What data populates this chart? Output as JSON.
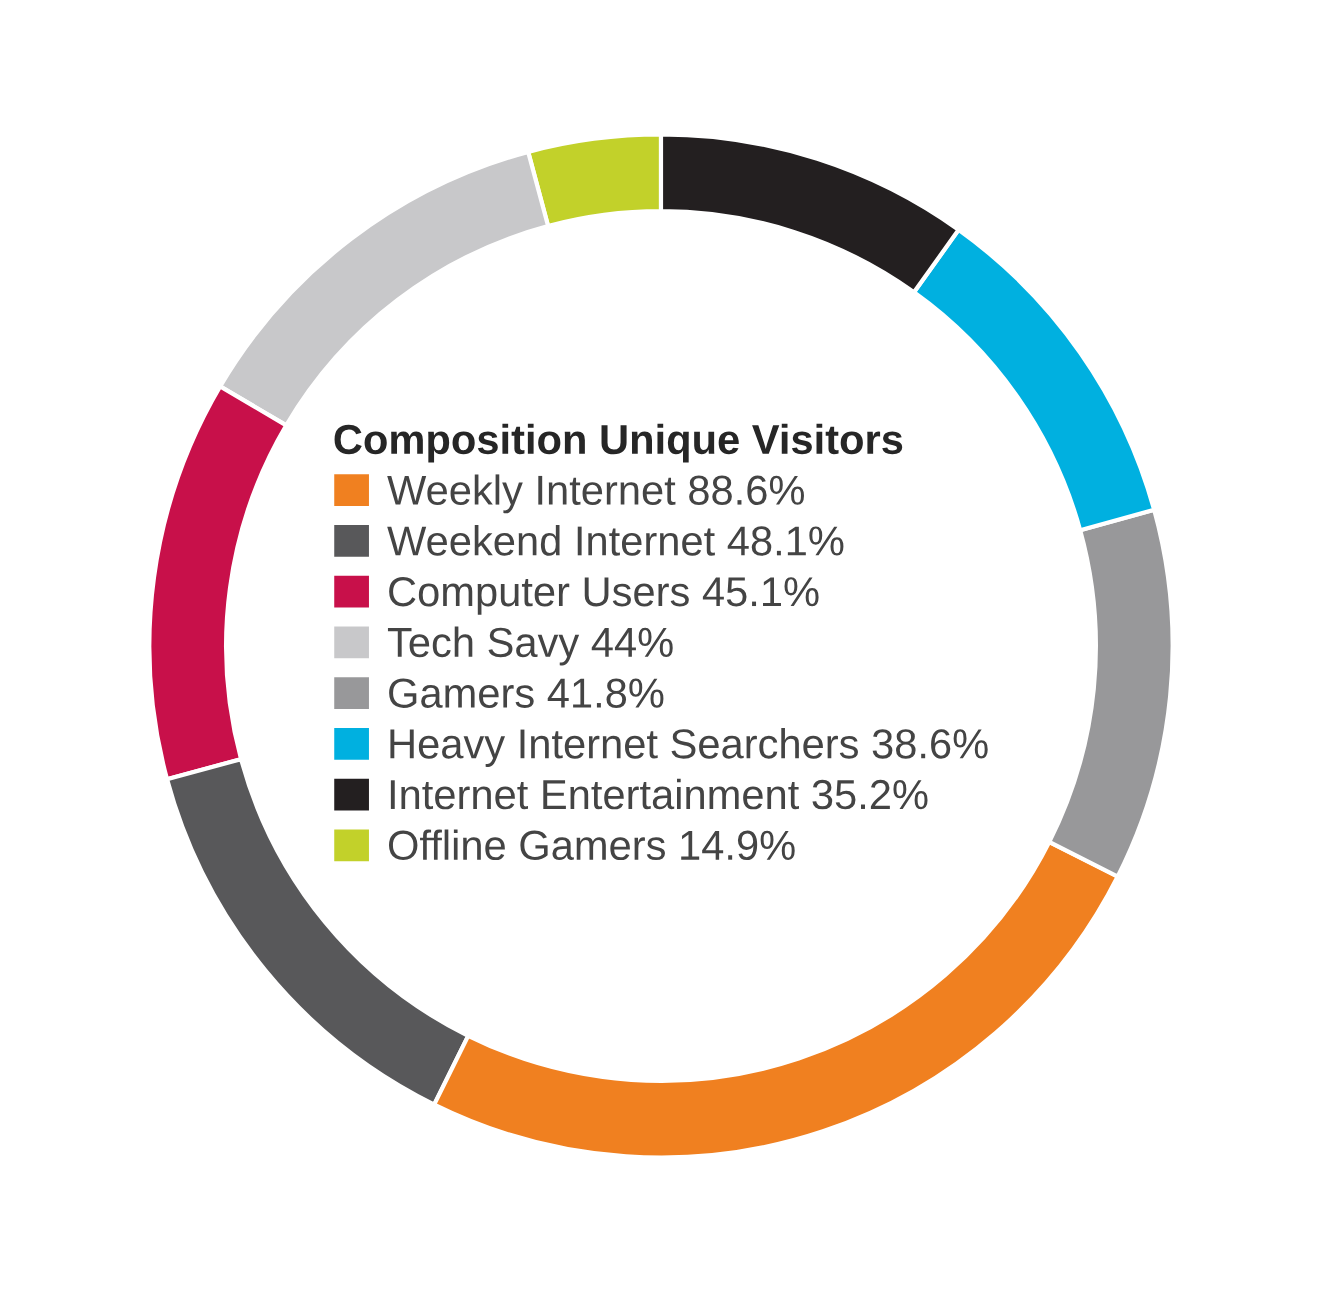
{
  "chart_data": {
    "type": "donut",
    "legend_title": "Composition Unique Visitors",
    "categories": [
      "Offline Gamers 14.9%",
      "Tech Savy 44%",
      "Computer Users 45.1%",
      "Weekend Internet 48.1%",
      "Weekly Internet 88.6%",
      "Gamers 41.8%",
      "Heavy Internet Searchers 38.6%",
      "Internet Entertainment 35.2%"
    ],
    "values": [
      4.18,
      12.35,
      12.66,
      13.5,
      24.87,
      11.73,
      10.83,
      9.88
    ],
    "colors": [
      "#c2d12a",
      "#c8c8ca",
      "#c8104a",
      "#58585a",
      "#f08020",
      "#98989a",
      "#00b0e0",
      "#231f20"
    ],
    "legend": "center"
  }
}
